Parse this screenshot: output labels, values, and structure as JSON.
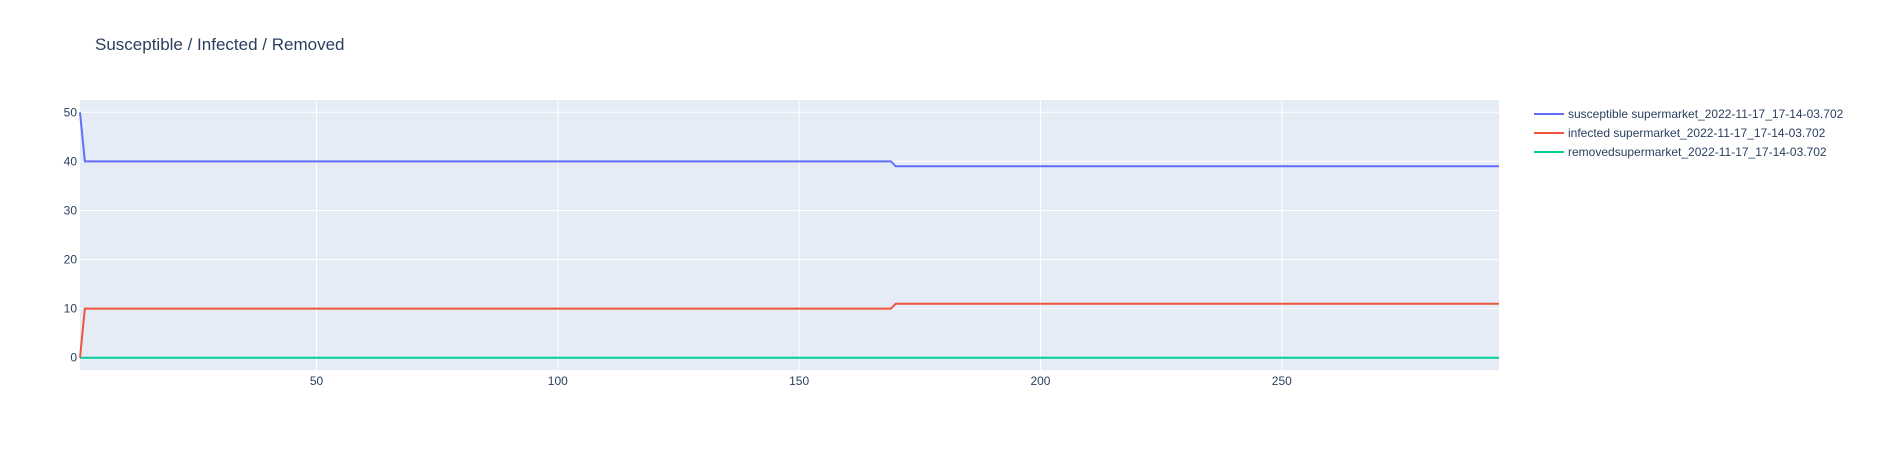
{
  "chart_data": {
    "type": "line",
    "title": "Susceptible / Infected / Removed",
    "xlabel": "",
    "ylabel": "",
    "xlim": [
      1,
      295
    ],
    "ylim": [
      -2.5,
      52.5
    ],
    "x_ticks": [
      50,
      100,
      150,
      200,
      250
    ],
    "y_ticks": [
      0,
      10,
      20,
      30,
      40,
      50
    ],
    "grid": true,
    "legend_position": "top-right",
    "plot_bg": "#e5ecf6",
    "series": [
      {
        "name": "susceptible supermarket_2022-11-17_17-14-03.702",
        "color": "#636efa",
        "points": [
          [
            1,
            50
          ],
          [
            2,
            40
          ],
          [
            169,
            40
          ],
          [
            170,
            39
          ],
          [
            295,
            39
          ]
        ]
      },
      {
        "name": "infected supermarket_2022-11-17_17-14-03.702",
        "color": "#ef553b",
        "points": [
          [
            1,
            0
          ],
          [
            2,
            10
          ],
          [
            169,
            10
          ],
          [
            170,
            11
          ],
          [
            295,
            11
          ]
        ]
      },
      {
        "name": "removedsupermarket_2022-11-17_17-14-03.702",
        "color": "#00cc96",
        "points": [
          [
            1,
            0
          ],
          [
            295,
            0
          ]
        ]
      }
    ]
  }
}
